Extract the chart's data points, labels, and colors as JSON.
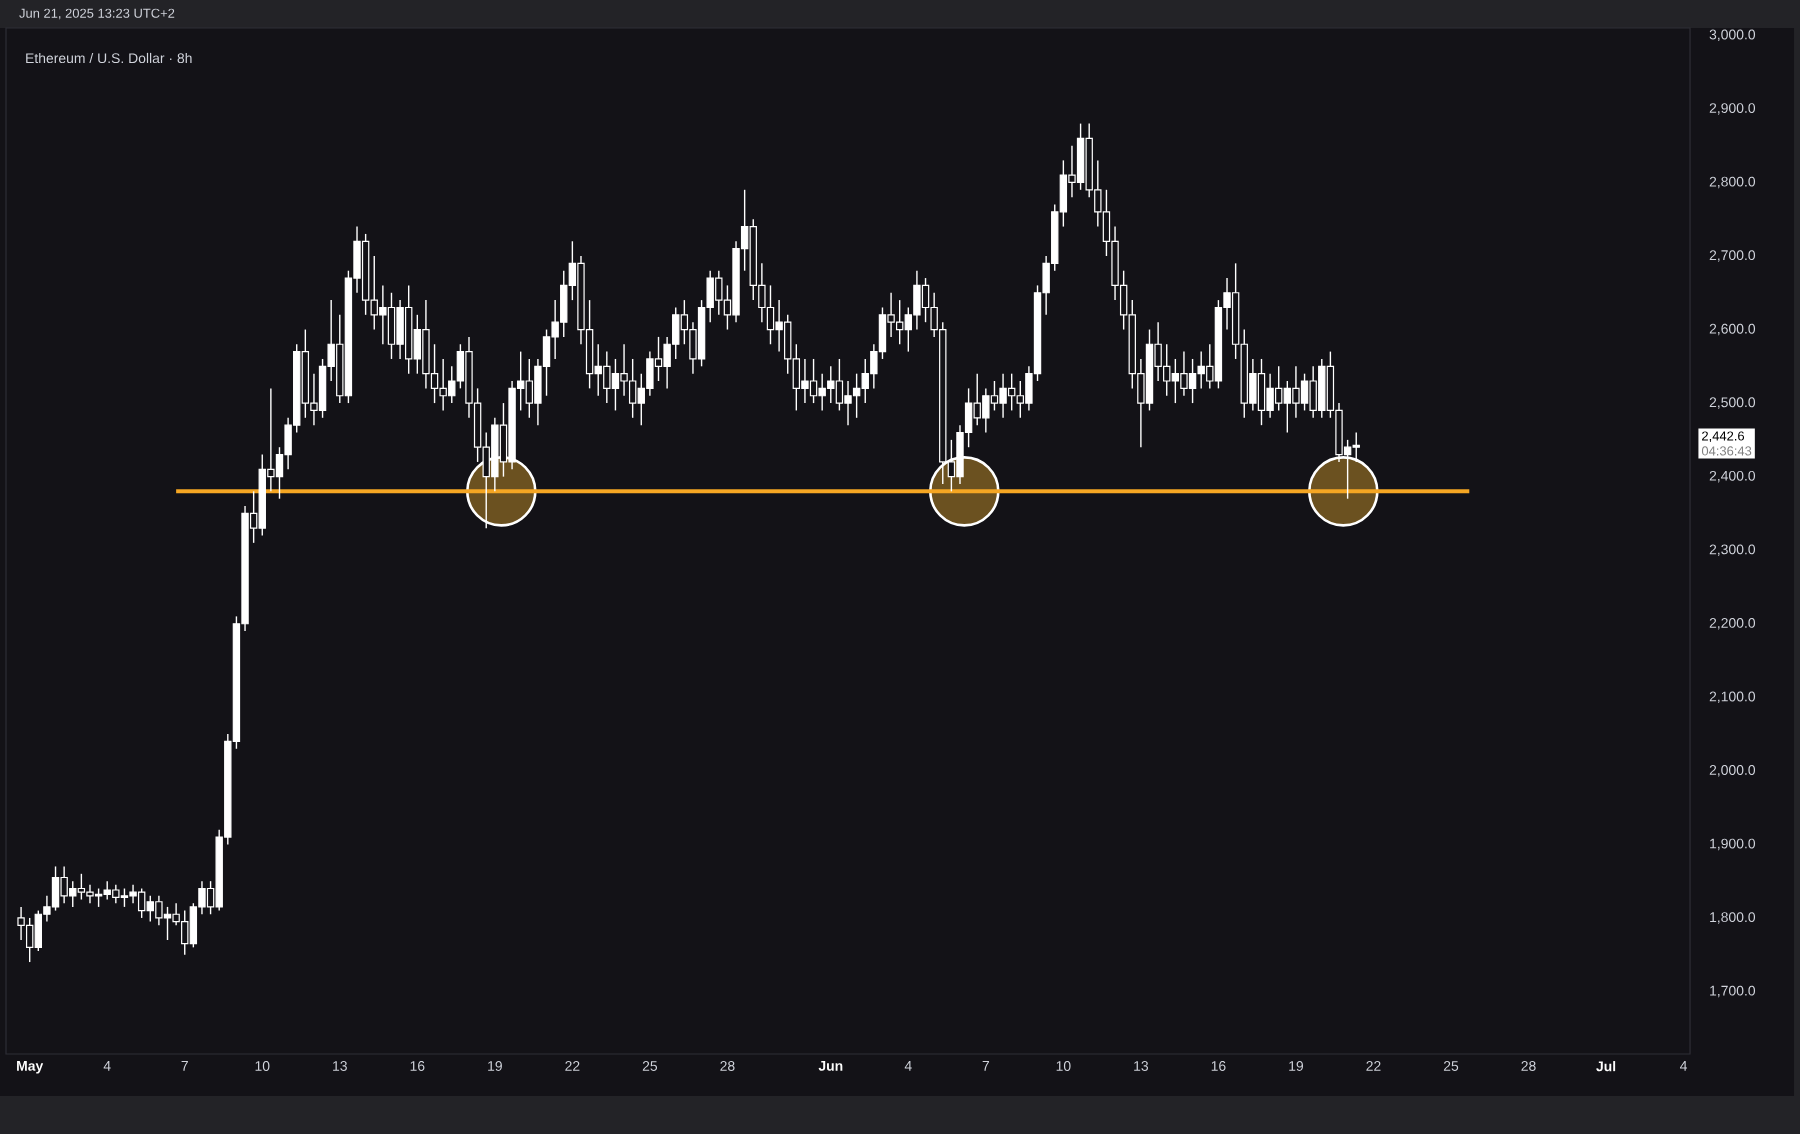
{
  "chart_data": {
    "type": "candlestick",
    "title": "Ethereum / U.S. Dollar · 8h",
    "annotations": [
      "Jun 21, 2025 13:23 UTC+2",
      "2,442.6",
      "04:36:43"
    ],
    "color": "#ffffff",
    "xlim": [
      "2025-04-30T02:00",
      "2025-07-04T06:00"
    ],
    "ylim": [
      1615,
      3010
    ],
    "xticks": [
      {
        "value": "2025-05-01",
        "label": "May"
      },
      {
        "value": "2025-05-04",
        "label": "4"
      },
      {
        "value": "2025-05-07",
        "label": "7"
      },
      {
        "value": "2025-05-10",
        "label": "10"
      },
      {
        "value": "2025-05-13",
        "label": "13"
      },
      {
        "value": "2025-05-16",
        "label": "16"
      },
      {
        "value": "2025-05-19",
        "label": "19"
      },
      {
        "value": "2025-05-22",
        "label": "22"
      },
      {
        "value": "2025-05-25",
        "label": "25"
      },
      {
        "value": "2025-05-28",
        "label": "28"
      },
      {
        "value": "2025-06-01",
        "label": "Jun"
      },
      {
        "value": "2025-06-04",
        "label": "4"
      },
      {
        "value": "2025-06-07",
        "label": "7"
      },
      {
        "value": "2025-06-10",
        "label": "10"
      },
      {
        "value": "2025-06-13",
        "label": "13"
      },
      {
        "value": "2025-06-16",
        "label": "16"
      },
      {
        "value": "2025-06-19",
        "label": "19"
      },
      {
        "value": "2025-06-22",
        "label": "22"
      },
      {
        "value": "2025-06-25",
        "label": "25"
      },
      {
        "value": "2025-06-28",
        "label": "28"
      },
      {
        "value": "2025-07-01",
        "label": "Jul"
      },
      {
        "value": "2025-07-04",
        "label": "4"
      }
    ],
    "yticks": [
      {
        "value": 1700,
        "label": "1,700.0"
      },
      {
        "value": 1800,
        "label": "1,800.0"
      },
      {
        "value": 1900,
        "label": "1,900.0"
      },
      {
        "value": 2000,
        "label": "2,000.0"
      },
      {
        "value": 2100,
        "label": "2,100.0"
      },
      {
        "value": 2200,
        "label": "2,200.0"
      },
      {
        "value": 2300,
        "label": "2,300.0"
      },
      {
        "value": 2400,
        "label": "2,400.0"
      },
      {
        "value": 2500,
        "label": "2,500.0"
      },
      {
        "value": 2600,
        "label": "2,600.0"
      },
      {
        "value": 2700,
        "label": "2,700.0"
      },
      {
        "value": 2800,
        "label": "2,800.0"
      },
      {
        "value": 2900,
        "label": "2,900.0"
      },
      {
        "value": 3000,
        "label": "3,000.0"
      }
    ],
    "x": [
      "2025-04-30T16:00",
      "2025-05-01T00:00",
      "2025-05-01T08:00",
      "2025-05-01T16:00",
      "2025-05-02T00:00",
      "2025-05-02T08:00",
      "2025-05-02T16:00",
      "2025-05-03T00:00",
      "2025-05-03T08:00",
      "2025-05-03T16:00",
      "2025-05-04T00:00",
      "2025-05-04T08:00",
      "2025-05-04T16:00",
      "2025-05-05T00:00",
      "2025-05-05T08:00",
      "2025-05-05T16:00",
      "2025-05-06T00:00",
      "2025-05-06T08:00",
      "2025-05-06T16:00",
      "2025-05-07T00:00",
      "2025-05-07T08:00",
      "2025-05-07T16:00",
      "2025-05-08T00:00",
      "2025-05-08T08:00",
      "2025-05-08T16:00",
      "2025-05-09T00:00",
      "2025-05-09T08:00",
      "2025-05-09T16:00",
      "2025-05-10T00:00",
      "2025-05-10T08:00",
      "2025-05-10T16:00",
      "2025-05-11T00:00",
      "2025-05-11T08:00",
      "2025-05-11T16:00",
      "2025-05-12T00:00",
      "2025-05-12T08:00",
      "2025-05-12T16:00",
      "2025-05-13T00:00",
      "2025-05-13T08:00",
      "2025-05-13T16:00",
      "2025-05-14T00:00",
      "2025-05-14T08:00",
      "2025-05-14T16:00",
      "2025-05-15T00:00",
      "2025-05-15T08:00",
      "2025-05-15T16:00",
      "2025-05-16T00:00",
      "2025-05-16T08:00",
      "2025-05-16T16:00",
      "2025-05-17T00:00",
      "2025-05-17T08:00",
      "2025-05-17T16:00",
      "2025-05-18T00:00",
      "2025-05-18T08:00",
      "2025-05-18T16:00",
      "2025-05-19T00:00",
      "2025-05-19T08:00",
      "2025-05-19T16:00",
      "2025-05-20T00:00",
      "2025-05-20T08:00",
      "2025-05-20T16:00",
      "2025-05-21T00:00",
      "2025-05-21T08:00",
      "2025-05-21T16:00",
      "2025-05-22T00:00",
      "2025-05-22T08:00",
      "2025-05-22T16:00",
      "2025-05-23T00:00",
      "2025-05-23T08:00",
      "2025-05-23T16:00",
      "2025-05-24T00:00",
      "2025-05-24T08:00",
      "2025-05-24T16:00",
      "2025-05-25T00:00",
      "2025-05-25T08:00",
      "2025-05-25T16:00",
      "2025-05-26T00:00",
      "2025-05-26T08:00",
      "2025-05-26T16:00",
      "2025-05-27T00:00",
      "2025-05-27T08:00",
      "2025-05-27T16:00",
      "2025-05-28T00:00",
      "2025-05-28T08:00",
      "2025-05-28T16:00",
      "2025-05-29T00:00",
      "2025-05-29T08:00",
      "2025-05-29T16:00",
      "2025-05-30T00:00",
      "2025-05-30T08:00",
      "2025-05-30T16:00",
      "2025-05-31T00:00",
      "2025-05-31T08:00",
      "2025-05-31T16:00",
      "2025-06-01T00:00",
      "2025-06-01T08:00",
      "2025-06-01T16:00",
      "2025-06-02T00:00",
      "2025-06-02T08:00",
      "2025-06-02T16:00",
      "2025-06-03T00:00",
      "2025-06-03T08:00",
      "2025-06-03T16:00",
      "2025-06-04T00:00",
      "2025-06-04T08:00",
      "2025-06-04T16:00",
      "2025-06-05T00:00",
      "2025-06-05T08:00",
      "2025-06-05T16:00",
      "2025-06-06T00:00",
      "2025-06-06T08:00",
      "2025-06-06T16:00",
      "2025-06-07T00:00",
      "2025-06-07T08:00",
      "2025-06-07T16:00",
      "2025-06-08T00:00",
      "2025-06-08T08:00",
      "2025-06-08T16:00",
      "2025-06-09T00:00",
      "2025-06-09T08:00",
      "2025-06-09T16:00",
      "2025-06-10T00:00",
      "2025-06-10T08:00",
      "2025-06-10T16:00",
      "2025-06-11T00:00",
      "2025-06-11T08:00",
      "2025-06-11T16:00",
      "2025-06-12T00:00",
      "2025-06-12T08:00",
      "2025-06-12T16:00",
      "2025-06-13T00:00",
      "2025-06-13T08:00",
      "2025-06-13T16:00",
      "2025-06-14T00:00",
      "2025-06-14T08:00",
      "2025-06-14T16:00",
      "2025-06-15T00:00",
      "2025-06-15T08:00",
      "2025-06-15T16:00",
      "2025-06-16T00:00",
      "2025-06-16T08:00",
      "2025-06-16T16:00",
      "2025-06-17T00:00",
      "2025-06-17T08:00",
      "2025-06-17T16:00",
      "2025-06-18T00:00",
      "2025-06-18T08:00",
      "2025-06-18T16:00",
      "2025-06-19T00:00",
      "2025-06-19T08:00",
      "2025-06-19T16:00",
      "2025-06-20T00:00",
      "2025-06-20T08:00",
      "2025-06-20T16:00",
      "2025-06-21T00:00",
      "2025-06-21T08:00"
    ],
    "ohlc": [
      [
        1800,
        1815,
        1770,
        1790
      ],
      [
        1790,
        1800,
        1740,
        1760
      ],
      [
        1760,
        1810,
        1755,
        1805
      ],
      [
        1805,
        1830,
        1795,
        1815
      ],
      [
        1815,
        1870,
        1810,
        1855
      ],
      [
        1855,
        1870,
        1820,
        1830
      ],
      [
        1830,
        1850,
        1815,
        1840
      ],
      [
        1840,
        1860,
        1825,
        1835
      ],
      [
        1835,
        1845,
        1820,
        1830
      ],
      [
        1830,
        1840,
        1815,
        1832
      ],
      [
        1832,
        1850,
        1825,
        1838
      ],
      [
        1838,
        1845,
        1820,
        1828
      ],
      [
        1828,
        1840,
        1815,
        1830
      ],
      [
        1830,
        1845,
        1820,
        1835
      ],
      [
        1835,
        1840,
        1800,
        1810
      ],
      [
        1810,
        1830,
        1795,
        1822
      ],
      [
        1822,
        1830,
        1790,
        1800
      ],
      [
        1800,
        1815,
        1770,
        1805
      ],
      [
        1805,
        1820,
        1790,
        1795
      ],
      [
        1795,
        1810,
        1750,
        1765
      ],
      [
        1765,
        1820,
        1760,
        1815
      ],
      [
        1815,
        1850,
        1805,
        1840
      ],
      [
        1840,
        1850,
        1805,
        1815
      ],
      [
        1815,
        1920,
        1810,
        1910
      ],
      [
        1910,
        2050,
        1900,
        2040
      ],
      [
        2040,
        2210,
        2030,
        2200
      ],
      [
        2200,
        2360,
        2190,
        2350
      ],
      [
        2350,
        2380,
        2310,
        2330
      ],
      [
        2330,
        2430,
        2320,
        2410
      ],
      [
        2410,
        2520,
        2380,
        2400
      ],
      [
        2400,
        2440,
        2370,
        2430
      ],
      [
        2430,
        2480,
        2410,
        2470
      ],
      [
        2470,
        2580,
        2460,
        2570
      ],
      [
        2570,
        2600,
        2480,
        2500
      ],
      [
        2500,
        2540,
        2470,
        2490
      ],
      [
        2490,
        2560,
        2480,
        2550
      ],
      [
        2550,
        2640,
        2530,
        2580
      ],
      [
        2580,
        2620,
        2500,
        2510
      ],
      [
        2510,
        2680,
        2500,
        2670
      ],
      [
        2670,
        2740,
        2650,
        2720
      ],
      [
        2720,
        2730,
        2620,
        2640
      ],
      [
        2640,
        2700,
        2600,
        2620
      ],
      [
        2620,
        2660,
        2580,
        2630
      ],
      [
        2630,
        2650,
        2560,
        2580
      ],
      [
        2580,
        2640,
        2560,
        2630
      ],
      [
        2630,
        2660,
        2540,
        2560
      ],
      [
        2560,
        2620,
        2540,
        2600
      ],
      [
        2600,
        2640,
        2520,
        2540
      ],
      [
        2540,
        2580,
        2500,
        2520
      ],
      [
        2520,
        2560,
        2490,
        2510
      ],
      [
        2510,
        2550,
        2500,
        2530
      ],
      [
        2530,
        2580,
        2520,
        2570
      ],
      [
        2570,
        2590,
        2480,
        2500
      ],
      [
        2500,
        2520,
        2420,
        2440
      ],
      [
        2440,
        2460,
        2330,
        2400
      ],
      [
        2400,
        2480,
        2380,
        2470
      ],
      [
        2470,
        2500,
        2400,
        2420
      ],
      [
        2420,
        2530,
        2410,
        2520
      ],
      [
        2520,
        2570,
        2490,
        2530
      ],
      [
        2530,
        2560,
        2480,
        2500
      ],
      [
        2500,
        2560,
        2470,
        2550
      ],
      [
        2550,
        2600,
        2510,
        2590
      ],
      [
        2590,
        2640,
        2560,
        2610
      ],
      [
        2610,
        2680,
        2590,
        2660
      ],
      [
        2660,
        2720,
        2640,
        2690
      ],
      [
        2690,
        2700,
        2580,
        2600
      ],
      [
        2600,
        2640,
        2520,
        2540
      ],
      [
        2540,
        2580,
        2510,
        2550
      ],
      [
        2550,
        2570,
        2500,
        2520
      ],
      [
        2520,
        2560,
        2490,
        2540
      ],
      [
        2540,
        2580,
        2510,
        2530
      ],
      [
        2530,
        2560,
        2480,
        2500
      ],
      [
        2500,
        2540,
        2470,
        2520
      ],
      [
        2520,
        2570,
        2510,
        2560
      ],
      [
        2560,
        2590,
        2530,
        2550
      ],
      [
        2550,
        2590,
        2520,
        2580
      ],
      [
        2580,
        2630,
        2560,
        2620
      ],
      [
        2620,
        2640,
        2580,
        2600
      ],
      [
        2600,
        2610,
        2540,
        2560
      ],
      [
        2560,
        2640,
        2550,
        2630
      ],
      [
        2630,
        2680,
        2610,
        2670
      ],
      [
        2670,
        2680,
        2620,
        2640
      ],
      [
        2640,
        2660,
        2600,
        2620
      ],
      [
        2620,
        2720,
        2610,
        2710
      ],
      [
        2710,
        2790,
        2680,
        2740
      ],
      [
        2740,
        2750,
        2640,
        2660
      ],
      [
        2660,
        2690,
        2610,
        2630
      ],
      [
        2630,
        2660,
        2580,
        2600
      ],
      [
        2600,
        2640,
        2570,
        2610
      ],
      [
        2610,
        2620,
        2540,
        2560
      ],
      [
        2560,
        2580,
        2490,
        2520
      ],
      [
        2520,
        2560,
        2500,
        2530
      ],
      [
        2530,
        2560,
        2500,
        2510
      ],
      [
        2510,
        2540,
        2490,
        2520
      ],
      [
        2520,
        2550,
        2500,
        2530
      ],
      [
        2530,
        2560,
        2490,
        2500
      ],
      [
        2500,
        2530,
        2470,
        2510
      ],
      [
        2510,
        2540,
        2480,
        2520
      ],
      [
        2520,
        2560,
        2500,
        2540
      ],
      [
        2540,
        2580,
        2520,
        2570
      ],
      [
        2570,
        2630,
        2560,
        2620
      ],
      [
        2620,
        2650,
        2590,
        2610
      ],
      [
        2610,
        2640,
        2580,
        2600
      ],
      [
        2600,
        2630,
        2570,
        2620
      ],
      [
        2620,
        2680,
        2600,
        2660
      ],
      [
        2660,
        2670,
        2610,
        2630
      ],
      [
        2630,
        2650,
        2590,
        2600
      ],
      [
        2600,
        2610,
        2390,
        2420
      ],
      [
        2420,
        2450,
        2380,
        2400
      ],
      [
        2400,
        2470,
        2390,
        2460
      ],
      [
        2460,
        2520,
        2440,
        2500
      ],
      [
        2500,
        2540,
        2470,
        2480
      ],
      [
        2480,
        2520,
        2460,
        2510
      ],
      [
        2510,
        2530,
        2490,
        2500
      ],
      [
        2500,
        2540,
        2480,
        2520
      ],
      [
        2520,
        2540,
        2490,
        2510
      ],
      [
        2510,
        2530,
        2480,
        2500
      ],
      [
        2500,
        2550,
        2490,
        2540
      ],
      [
        2540,
        2660,
        2530,
        2650
      ],
      [
        2650,
        2700,
        2620,
        2690
      ],
      [
        2690,
        2770,
        2680,
        2760
      ],
      [
        2760,
        2830,
        2740,
        2810
      ],
      [
        2810,
        2850,
        2780,
        2800
      ],
      [
        2800,
        2880,
        2790,
        2860
      ],
      [
        2860,
        2880,
        2780,
        2790
      ],
      [
        2790,
        2830,
        2740,
        2760
      ],
      [
        2760,
        2790,
        2700,
        2720
      ],
      [
        2720,
        2740,
        2640,
        2660
      ],
      [
        2660,
        2680,
        2600,
        2620
      ],
      [
        2620,
        2640,
        2520,
        2540
      ],
      [
        2540,
        2560,
        2440,
        2500
      ],
      [
        2500,
        2600,
        2490,
        2580
      ],
      [
        2580,
        2610,
        2530,
        2550
      ],
      [
        2550,
        2580,
        2510,
        2530
      ],
      [
        2530,
        2560,
        2500,
        2540
      ],
      [
        2540,
        2570,
        2510,
        2520
      ],
      [
        2520,
        2560,
        2500,
        2540
      ],
      [
        2540,
        2570,
        2520,
        2550
      ],
      [
        2550,
        2580,
        2520,
        2530
      ],
      [
        2530,
        2640,
        2520,
        2630
      ],
      [
        2630,
        2670,
        2600,
        2650
      ],
      [
        2650,
        2690,
        2560,
        2580
      ],
      [
        2580,
        2600,
        2480,
        2500
      ],
      [
        2500,
        2560,
        2490,
        2540
      ],
      [
        2540,
        2560,
        2470,
        2490
      ],
      [
        2490,
        2540,
        2480,
        2520
      ],
      [
        2520,
        2550,
        2490,
        2500
      ],
      [
        2500,
        2530,
        2460,
        2520
      ],
      [
        2520,
        2550,
        2480,
        2500
      ],
      [
        2500,
        2540,
        2490,
        2530
      ],
      [
        2530,
        2550,
        2480,
        2490
      ],
      [
        2490,
        2560,
        2480,
        2550
      ],
      [
        2550,
        2570,
        2480,
        2490
      ],
      [
        2490,
        2500,
        2420,
        2430
      ],
      [
        2430,
        2450,
        2370,
        2440
      ],
      [
        2440,
        2460,
        2420,
        2442.6
      ]
    ],
    "series": [
      {
        "type": "scatter",
        "marker": "circle",
        "color": "#6b5120",
        "x": [
          "2025-05-19T06:00",
          "2025-06-06T04:00",
          "2025-06-20T20:00"
        ],
        "values": [
          2380,
          2380,
          2380
        ]
      },
      {
        "type": "line",
        "color": "#f5a623",
        "x": [
          "2025-05-06T16:00",
          "2025-06-25T17:00"
        ],
        "values": [
          2380,
          2380
        ]
      }
    ]
  }
}
